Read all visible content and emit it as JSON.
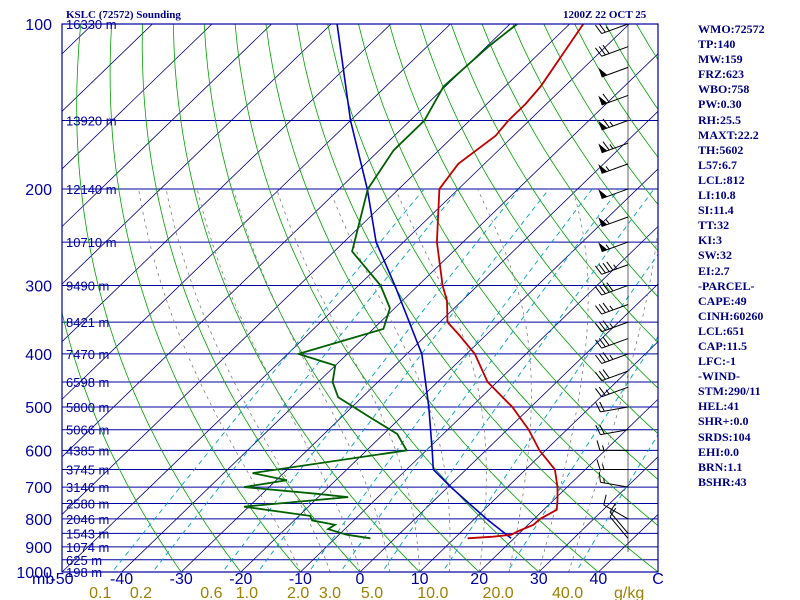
{
  "title_left": "KSLC (72572) Sounding",
  "title_right": "1200Z 22 OCT 25",
  "indices": [
    "WMO:72572",
    "TP:140",
    "MW:159",
    "FRZ:623",
    "WBO:758",
    "PW:0.30",
    "RH:25.5",
    "MAXT:22.2",
    "TH:5602",
    "L57:6.7",
    "LCL:812",
    "LI:10.8",
    "SI:11.4",
    "TT:32",
    "KI:3",
    "SW:32",
    "EI:2.7",
    "-PARCEL-",
    "CAPE:49",
    "CINH:60260",
    "LCL:651",
    "CAP:11.5",
    "LFC:-1",
    "-WIND-",
    "STM:290/11",
    "HEL:41",
    "SHR+:0.0",
    "SRDS:104",
    "EHI:0.0",
    "BRN:1.1",
    "BSHR:43"
  ],
  "colors": {
    "frame": "#0000a0",
    "isobar": "#0000a0",
    "isotherm": "#000080",
    "dry_adiabat": "#00a000",
    "moist_adiabat": "#808080",
    "mixing_ratio": "#00a0c0",
    "temperature": "#c00000",
    "dewpoint": "#006000",
    "parcel": "#0000c0",
    "mixing_ratio_labels": "#a08000",
    "wind_barbs": "#000000"
  },
  "chart_data": {
    "type": "line",
    "subtype": "skew-T log-P sounding",
    "pressure_axis": {
      "scale": "log",
      "range_hpa": [
        1000,
        100
      ],
      "ticks": [
        100,
        200,
        300,
        400,
        500,
        600,
        700,
        800,
        900,
        1000
      ],
      "tick_labels": [
        "100",
        "200",
        "300",
        "400",
        "500",
        "600",
        "700",
        "800",
        "900",
        "1000"
      ],
      "unit_label": "mb"
    },
    "temperature_axis": {
      "range_c": [
        -50,
        50
      ],
      "ticks": [
        -50,
        -40,
        -30,
        -20,
        -10,
        0,
        10,
        20,
        30,
        40,
        50
      ],
      "tick_labels": [
        "-50",
        "-40",
        "-30",
        "-20",
        "-10",
        "0",
        "10",
        "20",
        "30",
        "40",
        "C"
      ]
    },
    "mixing_ratio_axis": {
      "values": [
        0.1,
        0.2,
        0.6,
        1.0,
        2.0,
        3.0,
        5.0,
        10.0,
        20.0,
        40.0
      ],
      "labels": [
        "0.1",
        "0.2",
        "0.6",
        "1.0",
        "2.0",
        "3.0",
        "5.0",
        "10.0",
        "20.0",
        "40.0"
      ],
      "unit": "g/kg"
    },
    "height_labels": [
      {
        "p": 100,
        "label": "16330 m"
      },
      {
        "p": 150,
        "label": "13920 m"
      },
      {
        "p": 200,
        "label": "12140 m"
      },
      {
        "p": 250,
        "label": "10710 m"
      },
      {
        "p": 300,
        "label": "9490 m"
      },
      {
        "p": 350,
        "label": "8421 m"
      },
      {
        "p": 400,
        "label": "7470 m"
      },
      {
        "p": 450,
        "label": "6598 m"
      },
      {
        "p": 500,
        "label": "5800 m"
      },
      {
        "p": 550,
        "label": "5066 m"
      },
      {
        "p": 600,
        "label": "4385 m"
      },
      {
        "p": 650,
        "label": "3745 m"
      },
      {
        "p": 700,
        "label": "3146 m"
      },
      {
        "p": 750,
        "label": "2580 m"
      },
      {
        "p": 800,
        "label": "2046 m"
      },
      {
        "p": 850,
        "label": "1543 m"
      },
      {
        "p": 900,
        "label": "1074 m"
      },
      {
        "p": 950,
        "label": "625 m"
      },
      {
        "p": 1000,
        "label": "198 m"
      }
    ],
    "temperature": [
      {
        "p": 868,
        "t": 12.2
      },
      {
        "p": 862,
        "t": 16.2
      },
      {
        "p": 855,
        "t": 18.9
      },
      {
        "p": 840,
        "t": 19.6
      },
      {
        "p": 820,
        "t": 20.9
      },
      {
        "p": 800,
        "t": 21.0
      },
      {
        "p": 770,
        "t": 22.2
      },
      {
        "p": 740,
        "t": 20.7
      },
      {
        "p": 700,
        "t": 18.4
      },
      {
        "p": 650,
        "t": 14.9
      },
      {
        "p": 600,
        "t": 9.0
      },
      {
        "p": 550,
        "t": 3.6
      },
      {
        "p": 500,
        "t": -3.1
      },
      {
        "p": 450,
        "t": -11.6
      },
      {
        "p": 400,
        "t": -18.6
      },
      {
        "p": 370,
        "t": -24.4
      },
      {
        "p": 350,
        "t": -28.7
      },
      {
        "p": 320,
        "t": -32.5
      },
      {
        "p": 300,
        "t": -35.9
      },
      {
        "p": 250,
        "t": -44.4
      },
      {
        "p": 200,
        "t": -53.2
      },
      {
        "p": 180,
        "t": -54.4
      },
      {
        "p": 160,
        "t": -53.0
      },
      {
        "p": 150,
        "t": -53.5
      },
      {
        "p": 140,
        "t": -53.5
      },
      {
        "p": 130,
        "t": -54.0
      },
      {
        "p": 100,
        "t": -57.7
      }
    ],
    "dewpoint": [
      {
        "p": 868,
        "t": -4.1
      },
      {
        "p": 855,
        "t": -8.7
      },
      {
        "p": 835,
        "t": -12.8
      },
      {
        "p": 820,
        "t": -12.4
      },
      {
        "p": 805,
        "t": -17.0
      },
      {
        "p": 790,
        "t": -18.1
      },
      {
        "p": 760,
        "t": -30.8
      },
      {
        "p": 730,
        "t": -15.0
      },
      {
        "p": 720,
        "t": -20.8
      },
      {
        "p": 700,
        "t": -34.2
      },
      {
        "p": 680,
        "t": -28.2
      },
      {
        "p": 660,
        "t": -35.2
      },
      {
        "p": 600,
        "t": -13.3
      },
      {
        "p": 560,
        "t": -17.7
      },
      {
        "p": 520,
        "t": -25.6
      },
      {
        "p": 480,
        "t": -34.0
      },
      {
        "p": 450,
        "t": -37.6
      },
      {
        "p": 420,
        "t": -40.0
      },
      {
        "p": 400,
        "t": -48.2
      },
      {
        "p": 360,
        "t": -38.3
      },
      {
        "p": 330,
        "t": -40.8
      },
      {
        "p": 300,
        "t": -46.3
      },
      {
        "p": 260,
        "t": -57.0
      },
      {
        "p": 240,
        "t": -59.5
      },
      {
        "p": 200,
        "t": -65.2
      },
      {
        "p": 170,
        "t": -67.6
      },
      {
        "p": 150,
        "t": -67.6
      },
      {
        "p": 130,
        "t": -70.3
      },
      {
        "p": 110,
        "t": -69.7
      },
      {
        "p": 100,
        "t": -68.8
      }
    ],
    "parcel": [
      {
        "p": 868,
        "t": 19.5
      },
      {
        "p": 800,
        "t": 12.0
      },
      {
        "p": 700,
        "t": 0.5
      },
      {
        "p": 650,
        "t": -5.5
      },
      {
        "p": 600,
        "t": -9.0
      },
      {
        "p": 500,
        "t": -17.1
      },
      {
        "p": 400,
        "t": -27.5
      },
      {
        "p": 300,
        "t": -43.9
      },
      {
        "p": 250,
        "t": -54.6
      },
      {
        "p": 200,
        "t": -65.3
      },
      {
        "p": 150,
        "t": -80.0
      },
      {
        "p": 100,
        "t": -99.0
      }
    ],
    "wind_barbs": [
      {
        "p": 100,
        "dir": 250,
        "spd": 25
      },
      {
        "p": 110,
        "dir": 250,
        "spd": 30
      },
      {
        "p": 120,
        "dir": 250,
        "spd": 50
      },
      {
        "p": 135,
        "dir": 250,
        "spd": 60
      },
      {
        "p": 150,
        "dir": 250,
        "spd": 65
      },
      {
        "p": 165,
        "dir": 250,
        "spd": 65
      },
      {
        "p": 180,
        "dir": 250,
        "spd": 55
      },
      {
        "p": 200,
        "dir": 250,
        "spd": 50
      },
      {
        "p": 225,
        "dir": 250,
        "spd": 55
      },
      {
        "p": 250,
        "dir": 250,
        "spd": 55
      },
      {
        "p": 275,
        "dir": 250,
        "spd": 45
      },
      {
        "p": 300,
        "dir": 250,
        "spd": 40
      },
      {
        "p": 325,
        "dir": 250,
        "spd": 35
      },
      {
        "p": 350,
        "dir": 250,
        "spd": 35
      },
      {
        "p": 375,
        "dir": 250,
        "spd": 30
      },
      {
        "p": 400,
        "dir": 250,
        "spd": 35
      },
      {
        "p": 430,
        "dir": 250,
        "spd": 30
      },
      {
        "p": 460,
        "dir": 250,
        "spd": 25
      },
      {
        "p": 500,
        "dir": 260,
        "spd": 20
      },
      {
        "p": 550,
        "dir": 260,
        "spd": 20
      },
      {
        "p": 600,
        "dir": 270,
        "spd": 15
      },
      {
        "p": 650,
        "dir": 270,
        "spd": 15
      },
      {
        "p": 700,
        "dir": 280,
        "spd": 15
      },
      {
        "p": 800,
        "dir": 300,
        "spd": 10
      },
      {
        "p": 850,
        "dir": 320,
        "spd": 10
      },
      {
        "p": 868,
        "dir": 320,
        "spd": 10
      }
    ],
    "grid": true
  }
}
